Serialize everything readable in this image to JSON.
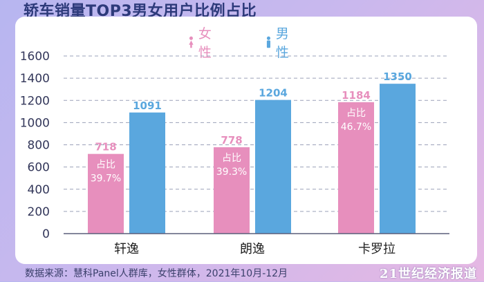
{
  "title": "轿车销量TOP3男女用户比例占比",
  "legend": [
    {
      "name": "女性",
      "icon": "female-icon",
      "color": "#e78fbd"
    },
    {
      "name": "男性",
      "icon": "male-icon",
      "color": "#5aa7de"
    }
  ],
  "footer": "数据来源：慧科Panel人群库，女性群体，2021年10月-12月",
  "watermark": "21世纪经济报道",
  "chart_data": {
    "type": "bar",
    "categories": [
      "轩逸",
      "朗逸",
      "卡罗拉"
    ],
    "series": [
      {
        "name": "女性",
        "values": [
          718,
          778,
          1184
        ],
        "color": "#e78fbd"
      },
      {
        "name": "男性",
        "values": [
          1091,
          1204,
          1350
        ],
        "color": "#5aa7de"
      }
    ],
    "annotations": [
      {
        "category": "轩逸",
        "label": "占比",
        "value": "39.7%"
      },
      {
        "category": "朗逸",
        "label": "占比",
        "value": "39.3%"
      },
      {
        "category": "卡罗拉",
        "label": "占比",
        "value": "46.7%"
      }
    ],
    "yticks": [
      0,
      200,
      400,
      600,
      800,
      1000,
      1200,
      1400,
      1600
    ],
    "ylim": [
      0,
      1600
    ],
    "grid": true,
    "legend_position": "top-center",
    "xlabel": "",
    "ylabel": "",
    "title": ""
  }
}
